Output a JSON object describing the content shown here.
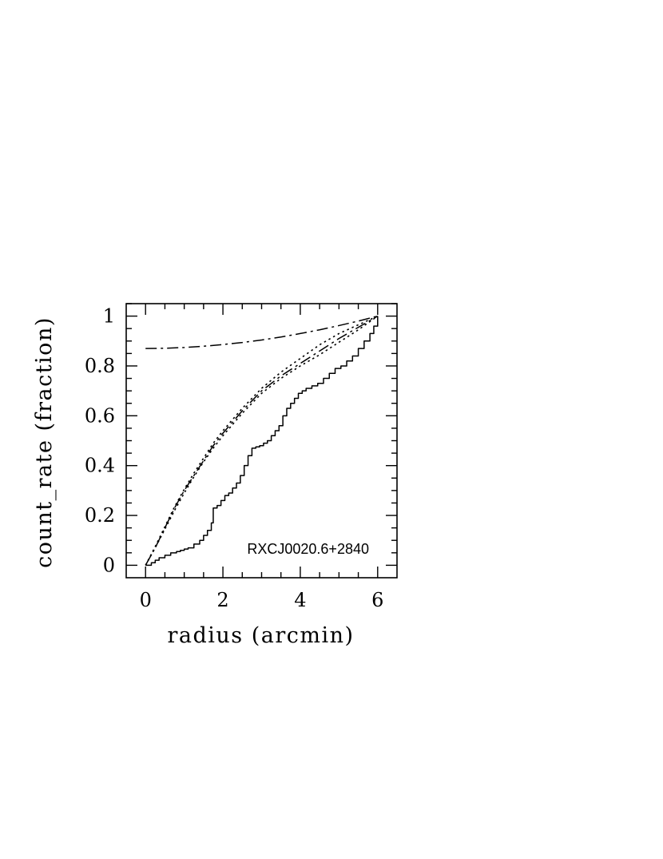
{
  "chart_data": {
    "type": "line",
    "title": "",
    "xlabel": "radius (arcmin)",
    "ylabel": "count_rate (fraction)",
    "xlim": [
      -0.5,
      6.5
    ],
    "ylim": [
      -0.05,
      1.05
    ],
    "xticks": [
      0,
      2,
      4,
      6
    ],
    "yticks": [
      0,
      0.2,
      0.4,
      0.6,
      0.8,
      1
    ],
    "xtick_labels": [
      "0",
      "2",
      "4",
      "6"
    ],
    "ytick_labels": [
      "0",
      "0.2",
      "0.4",
      "0.6",
      "0.8",
      "1"
    ],
    "grid": false,
    "annotation": "RXCJ0020.6+2840",
    "series": [
      {
        "style": "solid-step",
        "x": [
          0,
          0.15,
          0.25,
          0.35,
          0.5,
          0.65,
          0.8,
          0.9,
          1.0,
          1.1,
          1.25,
          1.4,
          1.5,
          1.6,
          1.7,
          1.75,
          1.85,
          1.95,
          2.05,
          2.15,
          2.25,
          2.35,
          2.45,
          2.55,
          2.65,
          2.75,
          2.85,
          2.95,
          3.05,
          3.15,
          3.25,
          3.35,
          3.45,
          3.55,
          3.65,
          3.75,
          3.85,
          3.95,
          4.05,
          4.15,
          4.3,
          4.45,
          4.6,
          4.75,
          4.9,
          5.05,
          5.2,
          5.35,
          5.5,
          5.65,
          5.8,
          5.9,
          6.0
        ],
        "y": [
          0,
          0.01,
          0.02,
          0.03,
          0.04,
          0.05,
          0.055,
          0.06,
          0.065,
          0.07,
          0.085,
          0.1,
          0.12,
          0.14,
          0.17,
          0.23,
          0.24,
          0.26,
          0.28,
          0.29,
          0.31,
          0.33,
          0.36,
          0.4,
          0.44,
          0.47,
          0.475,
          0.48,
          0.49,
          0.5,
          0.52,
          0.54,
          0.56,
          0.6,
          0.63,
          0.65,
          0.67,
          0.69,
          0.7,
          0.71,
          0.72,
          0.73,
          0.75,
          0.77,
          0.79,
          0.8,
          0.82,
          0.84,
          0.87,
          0.9,
          0.93,
          0.96,
          1.0
        ]
      },
      {
        "style": "dash-dot",
        "x": [
          0,
          0.5,
          1,
          1.5,
          2,
          2.5,
          3,
          3.5,
          4,
          4.5,
          5,
          5.5,
          6
        ],
        "y": [
          0.87,
          0.871,
          0.874,
          0.879,
          0.886,
          0.894,
          0.904,
          0.916,
          0.93,
          0.945,
          0.962,
          0.98,
          1.0
        ]
      },
      {
        "style": "dash-dot",
        "x": [
          0,
          0.25,
          0.5,
          0.75,
          1,
          1.25,
          1.5,
          1.75,
          2,
          2.5,
          3,
          3.5,
          4,
          4.5,
          5,
          5.5,
          6
        ],
        "y": [
          0,
          0.07,
          0.15,
          0.23,
          0.3,
          0.36,
          0.42,
          0.48,
          0.53,
          0.62,
          0.7,
          0.76,
          0.81,
          0.86,
          0.91,
          0.955,
          1.0
        ]
      },
      {
        "style": "dotted",
        "x": [
          0,
          0.25,
          0.5,
          0.75,
          1,
          1.25,
          1.5,
          1.75,
          2,
          2.5,
          3,
          3.5,
          4,
          4.5,
          5,
          5.5,
          6
        ],
        "y": [
          0,
          0.075,
          0.155,
          0.235,
          0.305,
          0.37,
          0.43,
          0.49,
          0.54,
          0.63,
          0.71,
          0.775,
          0.83,
          0.885,
          0.93,
          0.965,
          1.0
        ]
      },
      {
        "style": "dotted",
        "x": [
          0,
          0.25,
          0.5,
          0.75,
          1,
          1.25,
          1.5,
          1.75,
          2,
          2.5,
          3,
          3.5,
          4,
          4.5,
          5,
          5.5,
          6
        ],
        "y": [
          0,
          0.07,
          0.145,
          0.22,
          0.29,
          0.355,
          0.415,
          0.47,
          0.52,
          0.61,
          0.69,
          0.75,
          0.8,
          0.845,
          0.895,
          0.945,
          1.0
        ]
      }
    ]
  }
}
